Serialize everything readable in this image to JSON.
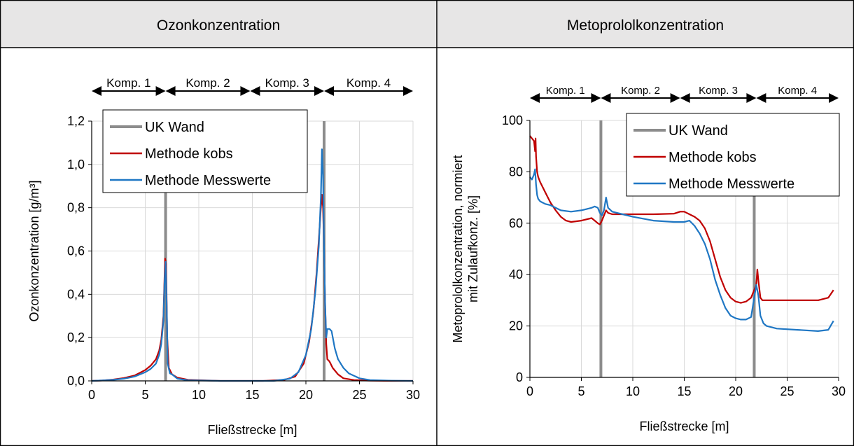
{
  "colors": {
    "header_bg": "#e7e6e6",
    "wall": "#8c8c8c",
    "kobs": "#c00000",
    "messwerte": "#1f77c4",
    "grid": "#d9d9d9"
  },
  "panels": {
    "left": {
      "header": "Ozonkonzentration"
    },
    "right": {
      "header": "Metoprololkonzentration"
    }
  },
  "chart_data": [
    {
      "type": "line",
      "xlabel": "Fließstrecke [m]",
      "ylabel": "Ozonkonzentration [g/m³]",
      "xlim": [
        0,
        30
      ],
      "ylim": [
        0,
        1.2
      ],
      "xticks": [
        0,
        5,
        10,
        15,
        20,
        25,
        30
      ],
      "xtick_labels": [
        "0",
        "5",
        "10",
        "15",
        "20",
        "25",
        "30"
      ],
      "yticks": [
        0,
        0.2,
        0.4,
        0.6,
        0.8,
        1.0,
        1.2
      ],
      "ytick_labels": [
        "0,0",
        "0,2",
        "0,4",
        "0,6",
        "0,8",
        "1,0",
        "1,2"
      ],
      "grid": true,
      "legend_position": "top-left",
      "legend": [
        "UK Wand",
        "Methode kobs",
        "Methode Messwerte"
      ],
      "walls": [
        6.9,
        21.7
      ],
      "compartments": [
        {
          "label": "Komp. 1",
          "x0": 0,
          "x1": 6.9
        },
        {
          "label": "Komp. 2",
          "x0": 6.9,
          "x1": 14.8
        },
        {
          "label": "Komp. 3",
          "x0": 14.8,
          "x1": 21.7
        },
        {
          "label": "Komp. 4",
          "x0": 21.7,
          "x1": 30
        }
      ],
      "series": [
        {
          "name": "Methode kobs",
          "x": [
            0,
            1,
            2,
            3,
            4,
            5,
            5.5,
            6,
            6.3,
            6.5,
            6.7,
            6.85,
            6.95,
            7.05,
            7.2,
            7.5,
            8,
            9,
            12,
            16,
            18,
            19,
            19.8,
            20.3,
            20.7,
            21,
            21.2,
            21.4,
            21.5,
            21.6,
            21.7,
            21.8,
            21.9,
            22,
            22.2,
            22.5,
            23,
            23.5,
            24.5,
            26,
            28,
            30
          ],
          "y": [
            0,
            0.002,
            0.006,
            0.013,
            0.025,
            0.05,
            0.07,
            0.1,
            0.14,
            0.19,
            0.3,
            0.565,
            0.54,
            0.2,
            0.06,
            0.03,
            0.015,
            0.005,
            0,
            0,
            0.005,
            0.02,
            0.08,
            0.18,
            0.32,
            0.5,
            0.65,
            0.8,
            0.86,
            0.8,
            0.6,
            0.35,
            0.17,
            0.1,
            0.09,
            0.06,
            0.03,
            0.012,
            0.004,
            0.001,
            0,
            0
          ]
        },
        {
          "name": "Methode Messwerte",
          "x": [
            0,
            1,
            2,
            3,
            4,
            5,
            5.5,
            6,
            6.3,
            6.5,
            6.7,
            6.8,
            6.9,
            7.0,
            7.1,
            7.3,
            7.5,
            8,
            9,
            12,
            17,
            18.5,
            19.3,
            20,
            20.5,
            20.9,
            21.2,
            21.4,
            21.5,
            21.6,
            21.7,
            21.8,
            21.9,
            22,
            22.2,
            22.4,
            22.7,
            23,
            23.5,
            24,
            25,
            26,
            28,
            30
          ],
          "y": [
            0,
            0.002,
            0.005,
            0.01,
            0.02,
            0.04,
            0.055,
            0.08,
            0.12,
            0.17,
            0.28,
            0.45,
            0.55,
            0.35,
            0.08,
            0.035,
            0.03,
            0.01,
            0.003,
            0,
            0,
            0.01,
            0.04,
            0.12,
            0.24,
            0.42,
            0.62,
            0.85,
            1.07,
            0.95,
            0.6,
            0.35,
            0.2,
            0.24,
            0.24,
            0.23,
            0.15,
            0.1,
            0.06,
            0.035,
            0.012,
            0.004,
            0.001,
            0
          ]
        }
      ]
    },
    {
      "type": "line",
      "xlabel": "Fließstrecke [m]",
      "ylabel": [
        "Metoprololkonzentration,  normiert",
        "mit Zulaufkonz.  [%]"
      ],
      "xlim": [
        0,
        30
      ],
      "ylim": [
        0,
        100
      ],
      "xticks": [
        0,
        5,
        10,
        15,
        20,
        25,
        30
      ],
      "xtick_labels": [
        "0",
        "5",
        "10",
        "15",
        "20",
        "25",
        "30"
      ],
      "yticks": [
        0,
        20,
        40,
        60,
        80,
        100
      ],
      "ytick_labels": [
        "0",
        "20",
        "40",
        "60",
        "80",
        "100"
      ],
      "grid": true,
      "legend_position": "top-right",
      "legend": [
        "UK Wand",
        "Methode kobs",
        "Methode Messwerte"
      ],
      "walls": [
        6.9,
        21.8
      ],
      "compartments": [
        {
          "label": "Komp. 1",
          "x0": 0,
          "x1": 6.9
        },
        {
          "label": "Komp. 2",
          "x0": 6.9,
          "x1": 14.6
        },
        {
          "label": "Komp. 3",
          "x0": 14.6,
          "x1": 22
        },
        {
          "label": "Komp. 4",
          "x0": 22,
          "x1": 30
        }
      ],
      "series": [
        {
          "name": "Methode kobs",
          "x": [
            0,
            0.2,
            0.4,
            0.5,
            0.55,
            0.6,
            0.7,
            0.8,
            1,
            1.5,
            2,
            2.5,
            3,
            3.5,
            4,
            5,
            6,
            6.3,
            6.6,
            6.8,
            7,
            7.2,
            7.4,
            7.6,
            8,
            9,
            10,
            12,
            14,
            14.6,
            15,
            15.5,
            16,
            16.5,
            17,
            17.5,
            18,
            18.5,
            19,
            19.5,
            20,
            20.5,
            21,
            21.5,
            22,
            22.1,
            22.2,
            22.4,
            22.6,
            23,
            24,
            26,
            28,
            29,
            29.5
          ],
          "y": [
            94,
            93,
            92,
            88,
            93,
            86,
            80,
            78,
            76,
            72,
            68,
            65,
            62.5,
            61,
            60.5,
            61,
            62,
            61,
            60,
            59.5,
            61,
            63,
            65,
            64,
            63.5,
            63.5,
            63.5,
            63.5,
            63.7,
            64.5,
            64.5,
            63.5,
            62.5,
            61,
            58,
            53,
            46,
            39,
            34,
            31,
            29.5,
            29,
            29.5,
            31,
            36,
            42,
            38,
            31,
            30,
            30,
            30,
            30,
            30,
            31,
            34
          ]
        },
        {
          "name": "Methode Messwerte",
          "x": [
            0,
            0.2,
            0.4,
            0.5,
            0.6,
            0.7,
            0.8,
            1,
            1.5,
            2,
            3,
            4,
            5,
            6,
            6.3,
            6.6,
            6.8,
            7,
            7.2,
            7.4,
            7.6,
            8,
            9,
            10,
            12,
            14,
            14.6,
            15,
            15.5,
            16,
            16.5,
            17,
            17.5,
            18,
            18.5,
            19,
            19.5,
            20,
            20.5,
            21,
            21.5,
            22,
            22.2,
            22.4,
            22.7,
            23,
            24,
            26,
            28,
            29,
            29.5
          ],
          "y": [
            78,
            77,
            79,
            81,
            75,
            71,
            69.5,
            68.5,
            67.5,
            67,
            65,
            64.5,
            65,
            66,
            66.5,
            66,
            64,
            63,
            65,
            70,
            66,
            64.5,
            63.5,
            62.5,
            61,
            60.5,
            60.5,
            60.5,
            61,
            59,
            56,
            52,
            46,
            38,
            32,
            27,
            24,
            23,
            22.5,
            22.5,
            23.5,
            36,
            32,
            24,
            21,
            20,
            19,
            18.5,
            18,
            18.5,
            22
          ]
        }
      ]
    }
  ]
}
